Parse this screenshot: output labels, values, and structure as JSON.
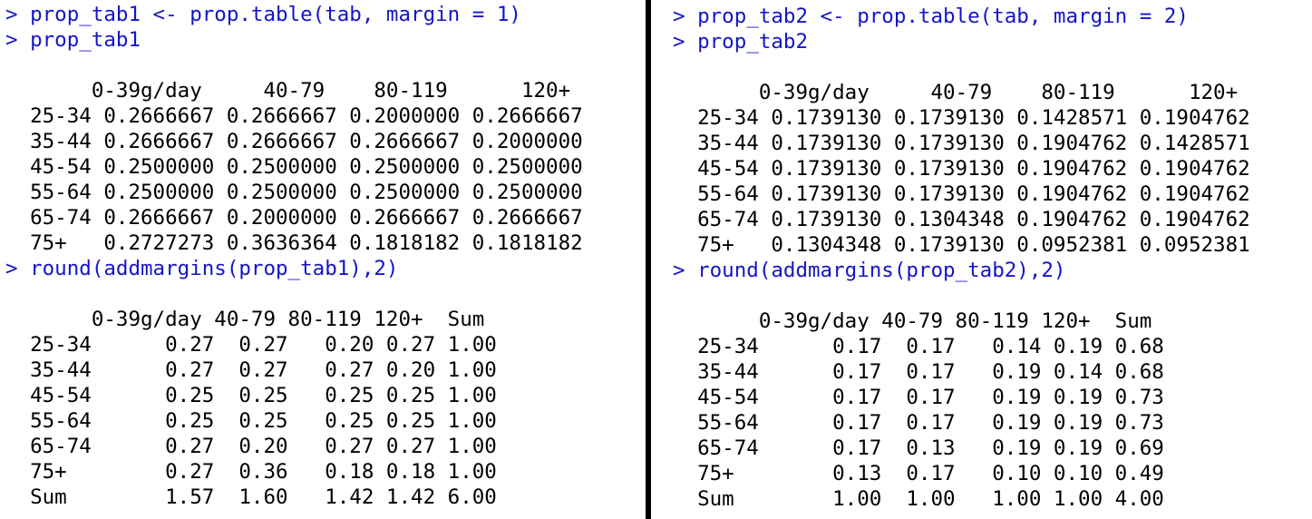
{
  "colors": {
    "command": "#1414c8",
    "output": "#000000",
    "background": "#ffffff",
    "divider": "#000000"
  },
  "left_pane": {
    "lines": [
      {
        "kind": "cmd",
        "text": "> prop_tab1 <- prop.table(tab, margin = 1)"
      },
      {
        "kind": "cmd",
        "text": "> prop_tab1"
      },
      {
        "kind": "out",
        "text": ""
      },
      {
        "kind": "out",
        "text": "       0-39g/day     40-79    80-119      120+"
      },
      {
        "kind": "out",
        "text": "  25-34 0.2666667 0.2666667 0.2000000 0.2666667"
      },
      {
        "kind": "out",
        "text": "  35-44 0.2666667 0.2666667 0.2666667 0.2000000"
      },
      {
        "kind": "out",
        "text": "  45-54 0.2500000 0.2500000 0.2500000 0.2500000"
      },
      {
        "kind": "out",
        "text": "  55-64 0.2500000 0.2500000 0.2500000 0.2500000"
      },
      {
        "kind": "out",
        "text": "  65-74 0.2666667 0.2000000 0.2666667 0.2666667"
      },
      {
        "kind": "out",
        "text": "  75+   0.2727273 0.3636364 0.1818182 0.1818182"
      },
      {
        "kind": "cmd",
        "text": "> round(addmargins(prop_tab1),2)"
      },
      {
        "kind": "out",
        "text": ""
      },
      {
        "kind": "out",
        "text": "       0-39g/day 40-79 80-119 120+  Sum"
      },
      {
        "kind": "out",
        "text": "  25-34      0.27  0.27   0.20 0.27 1.00"
      },
      {
        "kind": "out",
        "text": "  35-44      0.27  0.27   0.27 0.20 1.00"
      },
      {
        "kind": "out",
        "text": "  45-54      0.25  0.25   0.25 0.25 1.00"
      },
      {
        "kind": "out",
        "text": "  55-64      0.25  0.25   0.25 0.25 1.00"
      },
      {
        "kind": "out",
        "text": "  65-74      0.27  0.20   0.27 0.27 1.00"
      },
      {
        "kind": "out",
        "text": "  75+        0.27  0.36   0.18 0.18 1.00"
      },
      {
        "kind": "out",
        "text": "  Sum        1.57  1.60   1.42 1.42 6.00"
      }
    ]
  },
  "right_pane": {
    "lines": [
      {
        "kind": "cmd",
        "text": "> prop_tab2 <- prop.table(tab, margin = 2)"
      },
      {
        "kind": "cmd",
        "text": "> prop_tab2"
      },
      {
        "kind": "out",
        "text": ""
      },
      {
        "kind": "out",
        "text": "       0-39g/day     40-79    80-119      120+"
      },
      {
        "kind": "out",
        "text": "  25-34 0.1739130 0.1739130 0.1428571 0.1904762"
      },
      {
        "kind": "out",
        "text": "  35-44 0.1739130 0.1739130 0.1904762 0.1428571"
      },
      {
        "kind": "out",
        "text": "  45-54 0.1739130 0.1739130 0.1904762 0.1904762"
      },
      {
        "kind": "out",
        "text": "  55-64 0.1739130 0.1739130 0.1904762 0.1904762"
      },
      {
        "kind": "out",
        "text": "  65-74 0.1739130 0.1304348 0.1904762 0.1904762"
      },
      {
        "kind": "out",
        "text": "  75+   0.1304348 0.1739130 0.0952381 0.0952381"
      },
      {
        "kind": "cmd",
        "text": "> round(addmargins(prop_tab2),2)"
      },
      {
        "kind": "out",
        "text": ""
      },
      {
        "kind": "out",
        "text": "       0-39g/day 40-79 80-119 120+  Sum"
      },
      {
        "kind": "out",
        "text": "  25-34      0.17  0.17   0.14 0.19 0.68"
      },
      {
        "kind": "out",
        "text": "  35-44      0.17  0.17   0.19 0.14 0.68"
      },
      {
        "kind": "out",
        "text": "  45-54      0.17  0.17   0.19 0.19 0.73"
      },
      {
        "kind": "out",
        "text": "  55-64      0.17  0.17   0.19 0.19 0.73"
      },
      {
        "kind": "out",
        "text": "  65-74      0.17  0.13   0.19 0.19 0.69"
      },
      {
        "kind": "out",
        "text": "  75+        0.13  0.17   0.10 0.10 0.49"
      },
      {
        "kind": "out",
        "text": "  Sum        1.00  1.00   1.00 1.00 4.00"
      }
    ]
  }
}
